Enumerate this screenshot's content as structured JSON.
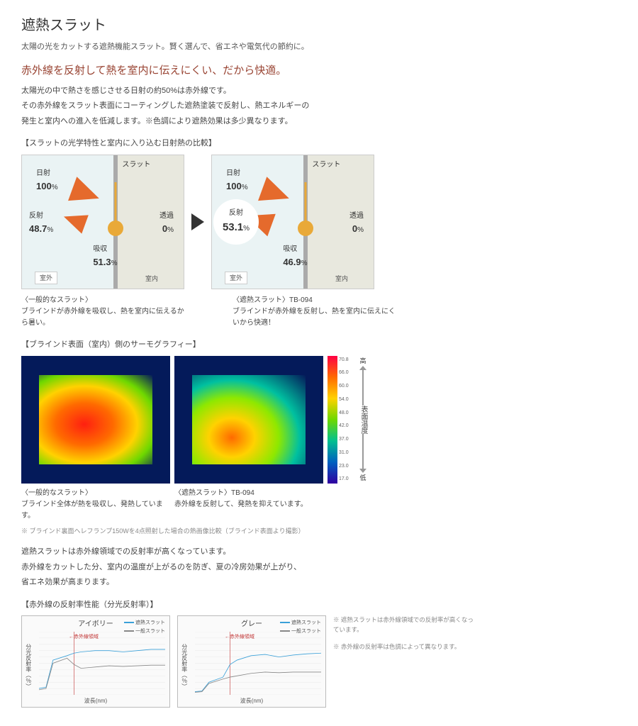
{
  "colors": {
    "accent_red": "#994433",
    "arrow_orange": "#e56a2c",
    "knob_orange": "#e9a938",
    "outdoor_bg": "#eaf3f4",
    "indoor_bg": "#e8e8de",
    "slat_gray": "#aaaaaa",
    "chart_blue": "#3aa0d8",
    "chart_gray": "#888888",
    "chart_red": "#c03030",
    "scale_colors": [
      "#ff0044",
      "#ff6a00",
      "#ffd200",
      "#6ed800",
      "#00c090",
      "#0060c0",
      "#3000a0"
    ]
  },
  "header": {
    "title": "遮熱スラット",
    "subtitle": "太陽の光をカットする遮熱機能スラット。賢く選んで、省エネや電気代の節約に。",
    "heading_red": "赤外線を反射して熱を室内に伝えにくい、だから快適。",
    "body1": "太陽光の中で熱さを感じさせる日射の約50%は赤外線です。",
    "body2": "その赤外線をスラット表面にコーティングした遮熱塗装で反射し、熱エネルギーの",
    "body3": "発生と室内への進入を低減します。※色調により遮熱効果は多少異なります。"
  },
  "diagrams": {
    "section_label": "【スラットの光学特性と室内に入り込む日射熱の比較】",
    "labels": {
      "sunlight": "日射",
      "sunlight_val": "100",
      "reflect": "反射",
      "transmit": "透過",
      "transmit_val": "0",
      "absorb": "吸収",
      "slat": "スラット",
      "outdoor": "室外",
      "indoor": "室内",
      "pct": "%"
    },
    "left": {
      "reflect_val": "48.7",
      "absorb_val": "51.3",
      "caption_title": "〈一般的なスラット〉",
      "caption_body": "ブラインドが赤外線を吸収し、熱を室内に伝えるから暑い。"
    },
    "right": {
      "reflect_val": "53.1",
      "absorb_val": "46.9",
      "caption_title": "〈遮熱スラット〉TB-094",
      "caption_body": "ブラインドが赤外線を反射し、熱を室内に伝えにくいから快適！"
    }
  },
  "thermo": {
    "section_label": "【ブラインド表面（室内）側のサーモグラフィー】",
    "scale_ticks": [
      "70.8",
      "66.0",
      "60.0",
      "54.0",
      "48.0",
      "42.0",
      "37.0",
      "31.0",
      "23.0",
      "17.0"
    ],
    "scale_top": "高",
    "scale_bottom": "低",
    "scale_label": "表面温度",
    "left": {
      "caption_title": "〈一般的なスラット〉",
      "caption_body": "ブラインド全体が熱を吸収し、発熱しています。"
    },
    "right": {
      "caption_title": "〈遮熱スラット〉TB-094",
      "caption_body": "赤外線を反射して、発熱を抑えています。"
    },
    "footnote": "※ ブラインド裏面ヘレフランプ150Wを4点照射した場合の熱画像比較（ブラインド表面より撮影）"
  },
  "lower_text": {
    "line1": "遮熱スラットは赤外線領域での反射率が高くなっています。",
    "line2": "赤外線をカットした分、室内の温度が上がるのを防ぎ、夏の冷房効果が上がり、",
    "line3": "省エネ効果が高まります。"
  },
  "charts": {
    "section_label": "【赤外線の反射率性能（分光反射率）】",
    "ylabel": "分光反射率（％）",
    "xlabel": "波長(nm)",
    "ir_region_label": "←赤外線領域",
    "legend_heat": "遮熱スラット",
    "legend_std": "一般スラット",
    "xlim": [
      300,
      2100
    ],
    "ylim": [
      0,
      100
    ],
    "xticks": [
      300,
      500,
      700,
      800,
      900,
      1100,
      1300,
      1500,
      1700,
      1900,
      2100
    ],
    "yticks": [
      0,
      10,
      20,
      30,
      40,
      50,
      60,
      70,
      80,
      90,
      100
    ],
    "ir_line_x": 800,
    "ivory": {
      "title": "アイボリー",
      "series_heat": {
        "x": [
          300,
          400,
          500,
          700,
          800,
          900,
          1100,
          1300,
          1500,
          1700,
          1900,
          2100
        ],
        "y": [
          10,
          12,
          55,
          62,
          66,
          68,
          70,
          70,
          68,
          70,
          72,
          72
        ]
      },
      "series_std": {
        "x": [
          300,
          400,
          500,
          700,
          800,
          900,
          1100,
          1300,
          1500,
          1700,
          1900,
          2100
        ],
        "y": [
          8,
          10,
          50,
          58,
          48,
          42,
          44,
          46,
          45,
          46,
          47,
          47
        ]
      }
    },
    "gray": {
      "title": "グレー",
      "series_heat": {
        "x": [
          300,
          400,
          500,
          700,
          800,
          900,
          1100,
          1300,
          1500,
          1700,
          1900,
          2100
        ],
        "y": [
          5,
          6,
          20,
          28,
          48,
          55,
          62,
          64,
          60,
          63,
          65,
          66
        ]
      },
      "series_std": {
        "x": [
          300,
          400,
          500,
          700,
          800,
          900,
          1100,
          1300,
          1500,
          1700,
          1900,
          2100
        ],
        "y": [
          4,
          5,
          18,
          25,
          28,
          30,
          34,
          36,
          35,
          36,
          36,
          36
        ]
      }
    },
    "note1": "※ 遮熱スラットは赤外線領域での反射率が高くなっています。",
    "note2": "※ 赤外線の反射率は色調によって異なります。"
  }
}
